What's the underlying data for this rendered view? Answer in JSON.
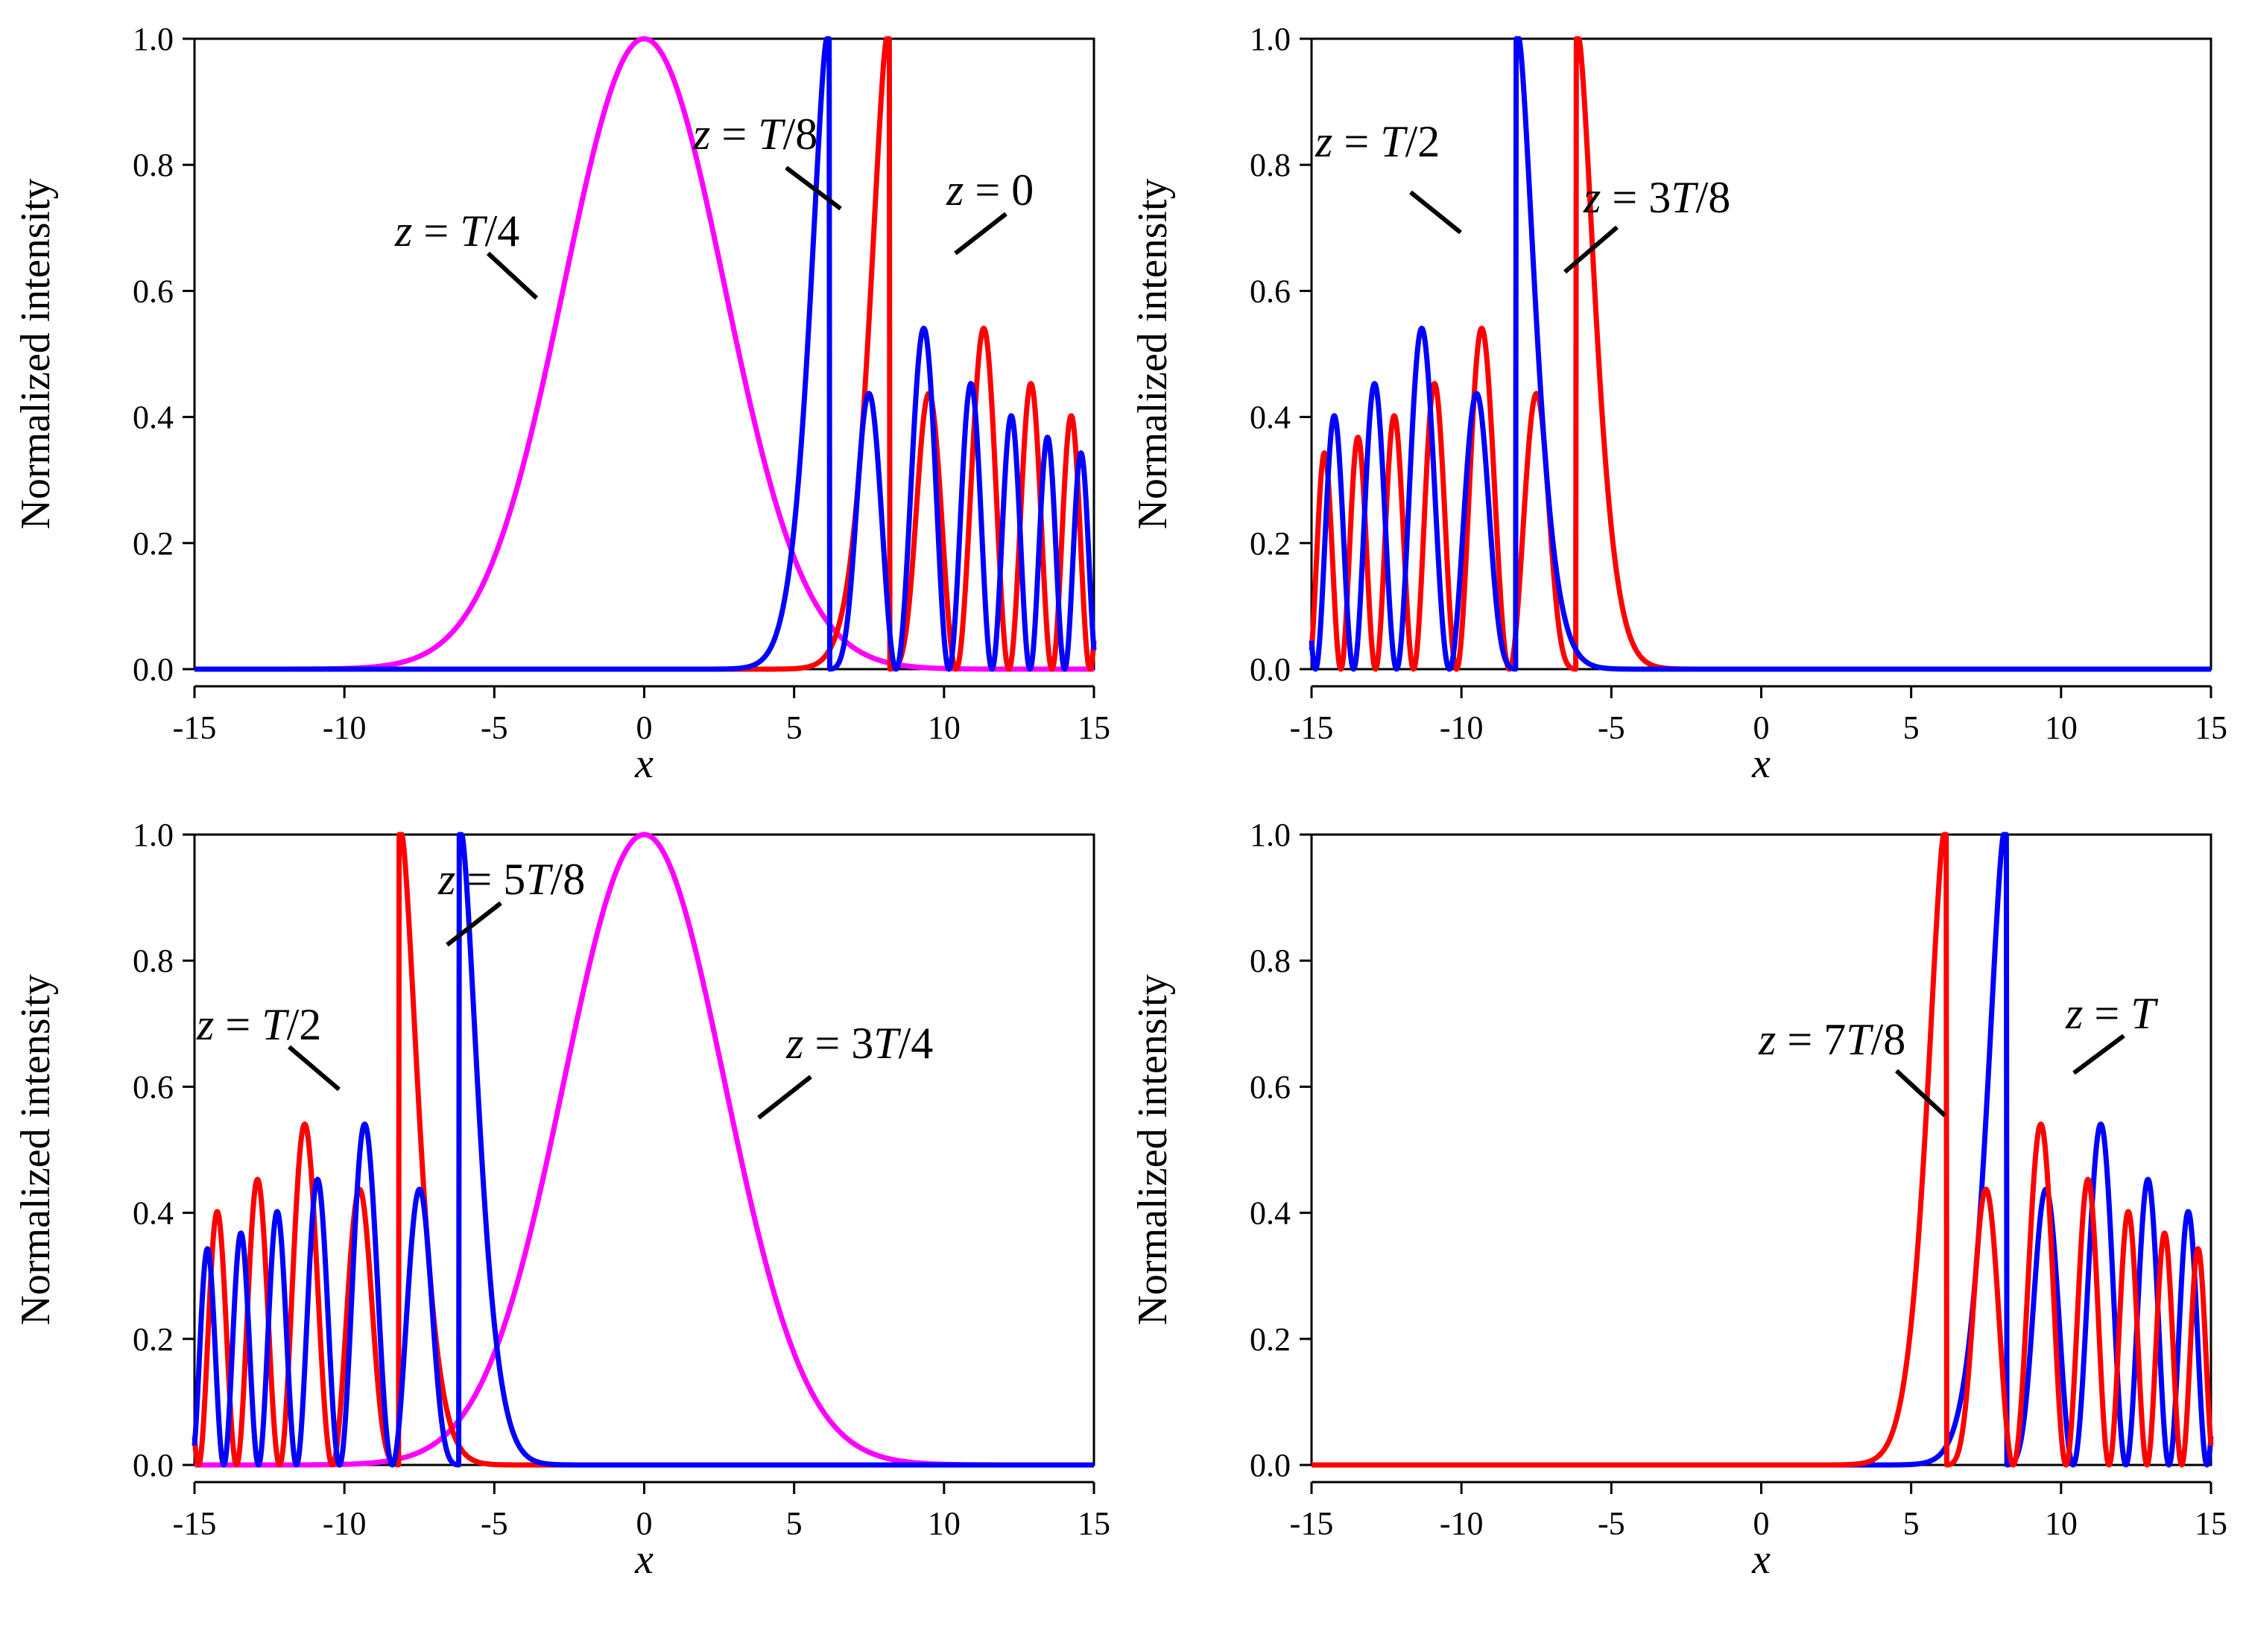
{
  "chart_data": [
    {
      "type": "line",
      "panel": "top-left",
      "xlabel": "x",
      "ylabel": "Normalized intensity",
      "xlim": [
        -15,
        15
      ],
      "ylim": [
        0,
        1.0
      ],
      "x_ticks": [
        "-15",
        "-10",
        "-5",
        "0",
        "5",
        "10",
        "15"
      ],
      "y_ticks": [
        "0.0",
        "0.2",
        "0.4",
        "0.6",
        "0.8",
        "1.0"
      ],
      "series": [
        {
          "name": "z = T/4",
          "color": "#ff00ff",
          "kind": "gaussian",
          "center": 0,
          "width": 3.8
        },
        {
          "name": "z = 0",
          "color": "#ff0000",
          "kind": "airy",
          "direction": 1,
          "peak_x": 9.1,
          "tail_x": -15
        },
        {
          "name": "z = T/8",
          "color": "#0000ff",
          "kind": "airy",
          "direction": 1,
          "peak_x": 7.1,
          "tail_x": -15
        }
      ],
      "annotations": [
        {
          "pre": "z = ",
          "var": "T",
          "post": "/4",
          "series": "z = T/4"
        },
        {
          "pre": "z = ",
          "var": "T",
          "post": "/8",
          "series": "z = T/8"
        },
        {
          "pre": "z = 0",
          "var": "",
          "post": "",
          "series": "z = 0"
        }
      ]
    },
    {
      "type": "line",
      "panel": "top-right",
      "xlabel": "x",
      "ylabel": "Normalized intensity",
      "xlim": [
        -15,
        15
      ],
      "ylim": [
        0,
        1.0
      ],
      "x_ticks": [
        "-15",
        "-10",
        "-5",
        "0",
        "5",
        "10",
        "15"
      ],
      "y_ticks": [
        "0.0",
        "0.2",
        "0.4",
        "0.6",
        "0.8",
        "1.0"
      ],
      "series": [
        {
          "name": "z = 3T/8",
          "color": "#ff0000",
          "kind": "airy",
          "direction": -1,
          "peak_x": -7.1,
          "tail_x": 15
        },
        {
          "name": "z = T/2",
          "color": "#0000ff",
          "kind": "airy",
          "direction": -1,
          "peak_x": -9.1,
          "tail_x": 15
        }
      ],
      "annotations": [
        {
          "pre": "z = ",
          "var": "T",
          "post": "/2",
          "series": "z = T/2"
        },
        {
          "pre": "z = 3",
          "var": "T",
          "post": "/8",
          "series": "z = 3T/8"
        }
      ]
    },
    {
      "type": "line",
      "panel": "bottom-left",
      "xlabel": "x",
      "ylabel": "Normalized intensity",
      "xlim": [
        -15,
        15
      ],
      "ylim": [
        0,
        1.0
      ],
      "x_ticks": [
        "-15",
        "-10",
        "-5",
        "0",
        "5",
        "10",
        "15"
      ],
      "y_ticks": [
        "0.0",
        "0.2",
        "0.4",
        "0.6",
        "0.8",
        "1.0"
      ],
      "series": [
        {
          "name": "z = 3T/4",
          "color": "#ff00ff",
          "kind": "gaussian",
          "center": 0,
          "width": 3.8
        },
        {
          "name": "z = T/2",
          "color": "#ff0000",
          "kind": "airy",
          "direction": -1,
          "peak_x": -9.1,
          "tail_x": 15
        },
        {
          "name": "z = 5T/8",
          "color": "#0000ff",
          "kind": "airy",
          "direction": -1,
          "peak_x": -7.1,
          "tail_x": 15
        }
      ],
      "annotations": [
        {
          "pre": "z = ",
          "var": "T",
          "post": "/2",
          "series": "z = T/2"
        },
        {
          "pre": "z = 5",
          "var": "T",
          "post": "/8",
          "series": "z = 5T/8"
        },
        {
          "pre": "z = 3",
          "var": "T",
          "post": "/4",
          "series": "z = 3T/4"
        }
      ]
    },
    {
      "type": "line",
      "panel": "bottom-right",
      "xlabel": "x",
      "ylabel": "Normalized intensity",
      "xlim": [
        -15,
        15
      ],
      "ylim": [
        0,
        1.0
      ],
      "x_ticks": [
        "-15",
        "-10",
        "-5",
        "0",
        "5",
        "10",
        "15"
      ],
      "y_ticks": [
        "0.0",
        "0.2",
        "0.4",
        "0.6",
        "0.8",
        "1.0"
      ],
      "series": [
        {
          "name": "z = T",
          "color": "#0000ff",
          "kind": "airy",
          "direction": 1,
          "peak_x": 9.1,
          "tail_x": -15
        },
        {
          "name": "z = 7T/8",
          "color": "#ff0000",
          "kind": "airy",
          "direction": 1,
          "peak_x": 7.1,
          "tail_x": -15
        }
      ],
      "annotations": [
        {
          "pre": "z = 7",
          "var": "T",
          "post": "/8",
          "series": "z = 7T/8"
        },
        {
          "pre": "z = ",
          "var": "T",
          "post": "",
          "series": "z = T"
        }
      ]
    }
  ]
}
